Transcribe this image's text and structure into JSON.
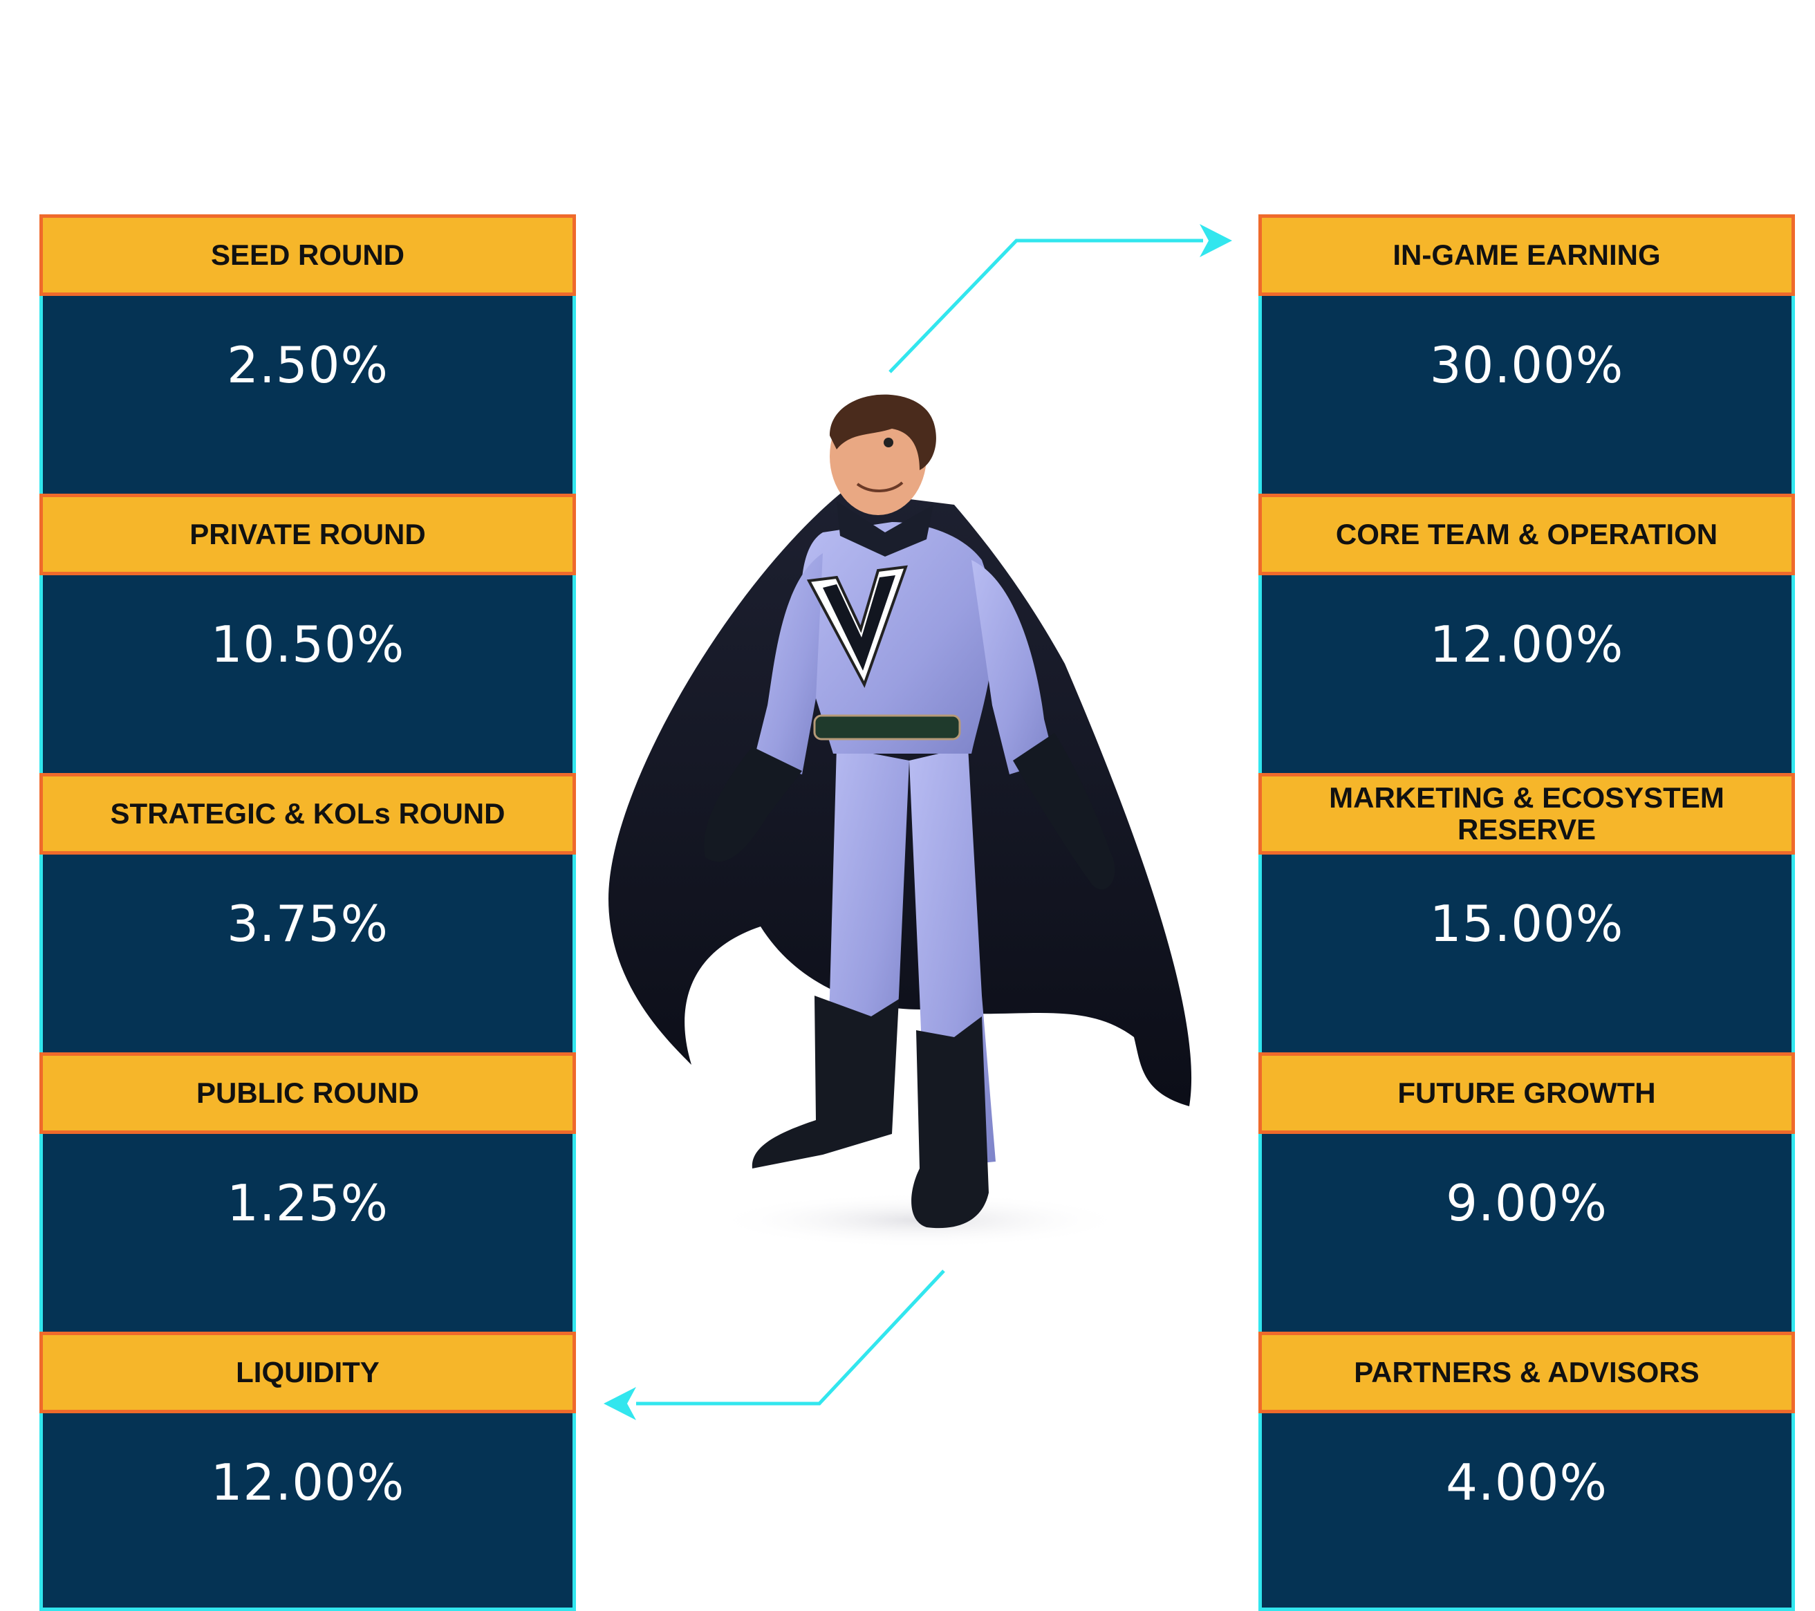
{
  "left_column": [
    {
      "label": "SEED ROUND",
      "value": "2.50%"
    },
    {
      "label": "PRIVATE ROUND",
      "value": "10.50%"
    },
    {
      "label": "STRATEGIC & KOLs ROUND",
      "value": "3.75%"
    },
    {
      "label": "PUBLIC ROUND",
      "value": "1.25%"
    },
    {
      "label": "LIQUIDITY",
      "value": "12.00%"
    }
  ],
  "right_column": [
    {
      "label": "IN-GAME EARNING",
      "value": "30.00%"
    },
    {
      "label": "CORE TEAM & OPERATION",
      "value": "12.00%"
    },
    {
      "label": "MARKETING & ECOSYSTEM RESERVE",
      "value": "15.00%"
    },
    {
      "label": "FUTURE GROWTH",
      "value": "9.00%"
    },
    {
      "label": "PARTNERS & ADVISORS",
      "value": "4.00%"
    }
  ],
  "colors": {
    "label_bg": "#f6b62a",
    "label_border": "#ef6a2b",
    "value_bg": "#053354",
    "value_border": "#32e6ee",
    "arrow": "#32e6ee"
  },
  "hero": {
    "emblem": "V",
    "icon": "superhero-illustration"
  }
}
